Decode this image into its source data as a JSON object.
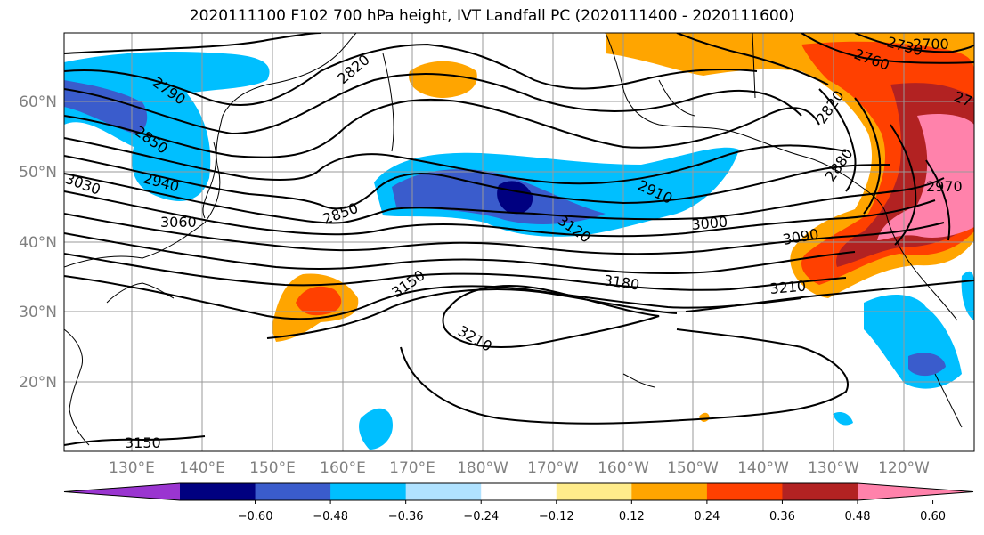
{
  "title": "2020111100 F102 700 hPa height, IVT Landfall PC (2020111400 - 2020111600)",
  "map": {
    "lat_labels": [
      "60°N",
      "50°N",
      "40°N",
      "30°N",
      "20°N"
    ],
    "lon_labels": [
      "130°E",
      "140°E",
      "150°E",
      "160°E",
      "170°E",
      "180°W",
      "170°W",
      "160°W",
      "150°W",
      "140°W",
      "130°W",
      "120°W"
    ],
    "contour_labels": [
      "2790",
      "2820",
      "2850",
      "2940",
      "3030",
      "3060",
      "2850",
      "2910",
      "3120",
      "3000",
      "3090",
      "3150",
      "3180",
      "3210",
      "3210",
      "3150",
      "2820",
      "2880",
      "2970",
      "2760",
      "2700",
      "2730",
      "27"
    ]
  },
  "colorbar": {
    "ticks": [
      "−0.60",
      "−0.48",
      "−0.36",
      "−0.24",
      "−0.12",
      "0.12",
      "0.24",
      "0.36",
      "0.48",
      "0.60"
    ],
    "colors": [
      "#9a35d0",
      "#000080",
      "#3a5ccc",
      "#00bfff",
      "#b0e2ff",
      "#ffffff",
      "#ffec8b",
      "#ffa500",
      "#ff4000",
      "#b22222",
      "#ff82ab"
    ]
  },
  "colors": {
    "contour": "#000000",
    "grid": "#999999",
    "coast": "#000000"
  }
}
